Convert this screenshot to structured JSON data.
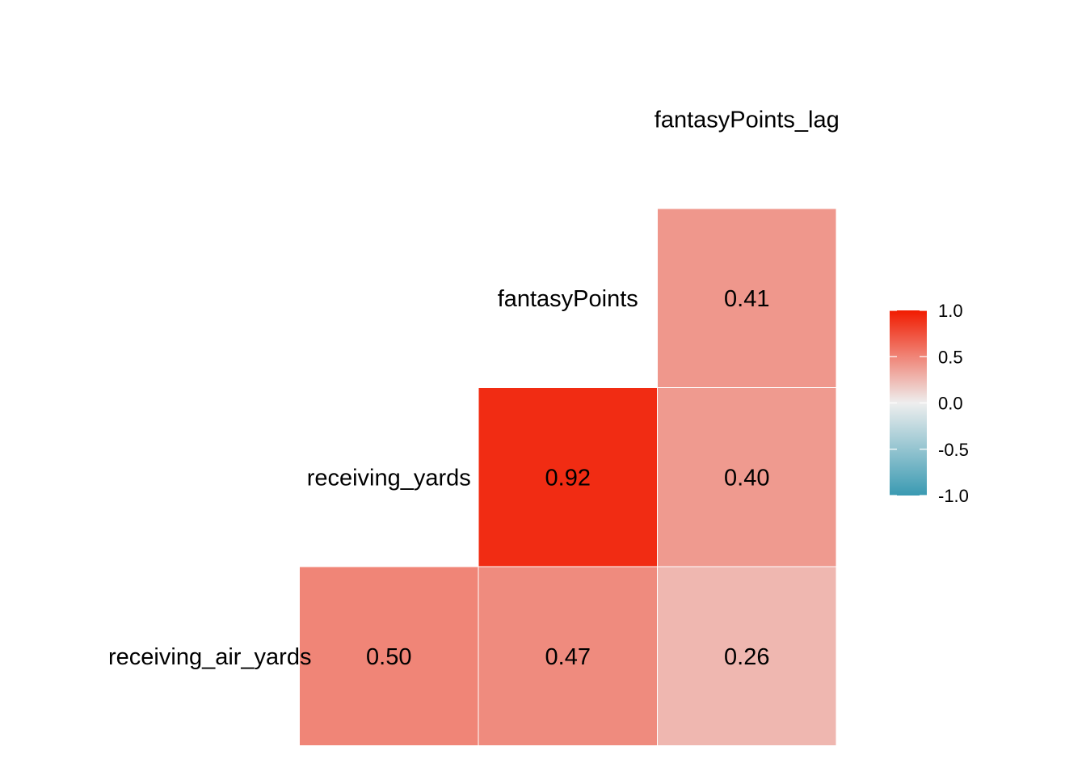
{
  "chart_data": {
    "type": "heatmap",
    "subtype": "lower-triangle-correlation-matrix",
    "variables": [
      "receiving_air_yards",
      "receiving_yards",
      "fantasyPoints",
      "fantasyPoints_lag"
    ],
    "cells": [
      {
        "row": "receiving_air_yards",
        "col": "receiving_yards",
        "value": 0.5,
        "label": "0.50"
      },
      {
        "row": "receiving_air_yards",
        "col": "fantasyPoints",
        "value": 0.47,
        "label": "0.47"
      },
      {
        "row": "receiving_air_yards",
        "col": "fantasyPoints_lag",
        "value": 0.26,
        "label": "0.26"
      },
      {
        "row": "receiving_yards",
        "col": "fantasyPoints",
        "value": 0.92,
        "label": "0.92"
      },
      {
        "row": "receiving_yards",
        "col": "fantasyPoints_lag",
        "value": 0.4,
        "label": "0.40"
      },
      {
        "row": "fantasyPoints",
        "col": "fantasyPoints_lag",
        "value": 0.41,
        "label": "0.41"
      }
    ],
    "color_scale": {
      "low": "#3A9AB2",
      "mid": "#EEEEEE",
      "high": "#F11B00",
      "limits": [
        -1.0,
        1.0
      ],
      "breaks": [
        "1.0",
        "0.5",
        "0.0",
        "-0.5",
        "-1.0"
      ]
    },
    "title": "",
    "legend_position": "right",
    "grid": false
  }
}
